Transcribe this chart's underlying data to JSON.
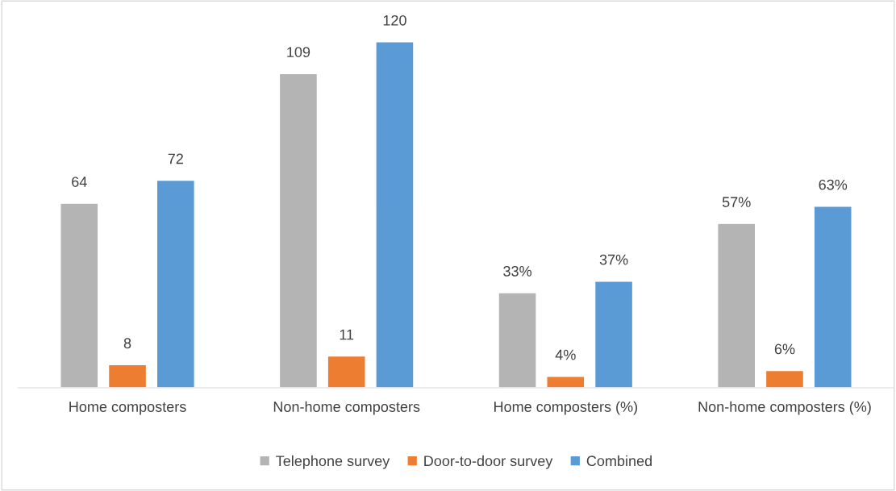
{
  "chart_data": {
    "type": "bar",
    "categories": [
      "Home composters",
      "Non-home composters",
      "Home composters (%)",
      "Non-home composters (%)"
    ],
    "series": [
      {
        "name": "Telephone survey",
        "color": "#b4b4b4",
        "values": [
          64,
          109,
          33,
          57
        ],
        "value_labels": [
          "64",
          "109",
          "33%",
          "57%"
        ]
      },
      {
        "name": "Door-to-door survey",
        "color": "#ed7d31",
        "values": [
          8,
          11,
          4,
          6
        ],
        "value_labels": [
          "8",
          "11",
          "4%",
          "6%"
        ]
      },
      {
        "name": "Combined",
        "color": "#5b9bd5",
        "values": [
          72,
          120,
          37,
          63
        ],
        "value_labels": [
          "72",
          "120",
          "37%",
          "63%"
        ]
      }
    ],
    "legend": "bottom",
    "grid": false
  }
}
